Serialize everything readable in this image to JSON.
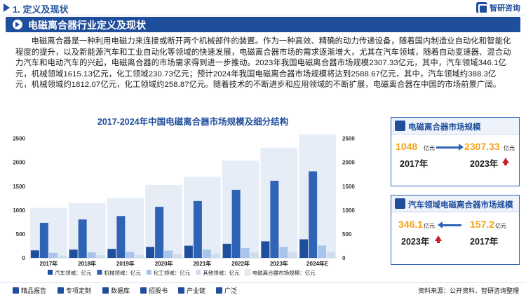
{
  "header": {
    "section_title": "1. 定义及现状",
    "brand_name": "智研咨询"
  },
  "banner": {
    "title": "电磁离合器行业定义及现状"
  },
  "intro": {
    "paragraph": "电磁离合器是一种利用电磁力来连接或断开两个机械部件的装置。作为一种高效、精确的动力传递设备，随着国内制造业自动化和智能化程度的提升，以及新能源汽车和工业自动化等领域的快速发展，电磁离合器市场的需求逐渐增大，尤其在汽车领域，随着自动变速器、混合动力汽车和电动汽车的兴起，电磁离合器的市场需求得到进一步推动。2023年我国电磁离合器市场规模2307.33亿元，其中，汽车领域346.1亿元，机械领域1615.13亿元，化工领域230.73亿元；预计2024年我国电磁离合器市场规模将达到2588.67亿元，其中，汽车领域约388.3亿元，机械领域约1812.07亿元，化工领域约258.87亿元。随着技术的不断进步和应用领域的不断扩展，电磁离合器在中国的市场前景广阔。"
  },
  "chart_data": {
    "type": "bar",
    "title": "2017-2024年中国电磁离合器市场规模及细分结构",
    "categories": [
      "2017年",
      "2018年",
      "2019年",
      "2020年",
      "2021年",
      "2022年",
      "2023年",
      "2024年E"
    ],
    "series": [
      {
        "name": "汽车领域：亿元",
        "color": "#1f4e9c",
        "values": [
          157.2,
          172,
          187,
          229,
          255,
          296,
          346.1,
          388.3
        ]
      },
      {
        "name": "机械领域：亿元",
        "color": "#2f63b5",
        "values": [
          734,
          804,
          876,
          1069,
          1191,
          1425,
          1615.13,
          1812.07
        ]
      },
      {
        "name": "化工领域：亿元",
        "color": "#a9c4ea",
        "values": [
          104.8,
          115,
          125,
          153,
          170,
          204,
          230.73,
          258.87
        ]
      },
      {
        "name": "其他领域：亿元",
        "color": "#cfdcf0",
        "values": [
          52,
          58,
          62,
          76,
          84,
          110,
          115.37,
          129.43
        ]
      },
      {
        "name": "电磁离合器市场规模：亿元",
        "color": "#e6edf7",
        "values": [
          1048,
          1149,
          1250,
          1527,
          1700,
          2035,
          2307.33,
          2588.67
        ]
      }
    ],
    "y_ticks": [
      "0",
      "500",
      "1000",
      "1500",
      "2000",
      "2500"
    ],
    "ylim": [
      0,
      2700
    ],
    "legend_position": "bottom",
    "grid": false
  },
  "card_total": {
    "title": "电磁离合器市场规模",
    "from_value": "1048",
    "from_unit": "亿元",
    "from_year": "2017年",
    "to_value": "2307.33",
    "to_unit": "亿元",
    "to_year": "2023年"
  },
  "card_auto": {
    "title": "汽车领域电磁离合器市场规模",
    "left_value": "346.1",
    "left_unit": "亿元",
    "left_year": "2023年",
    "right_value": "157.2",
    "right_unit": "亿元",
    "right_year": "2017年"
  },
  "footer": {
    "item1": "精品报告",
    "item2": "专项定制",
    "item3": "数据库",
    "item4": "招股书",
    "item5": "产业链",
    "item6": "广泛",
    "source": "资料来源：公开资料、智研咨询整理"
  }
}
